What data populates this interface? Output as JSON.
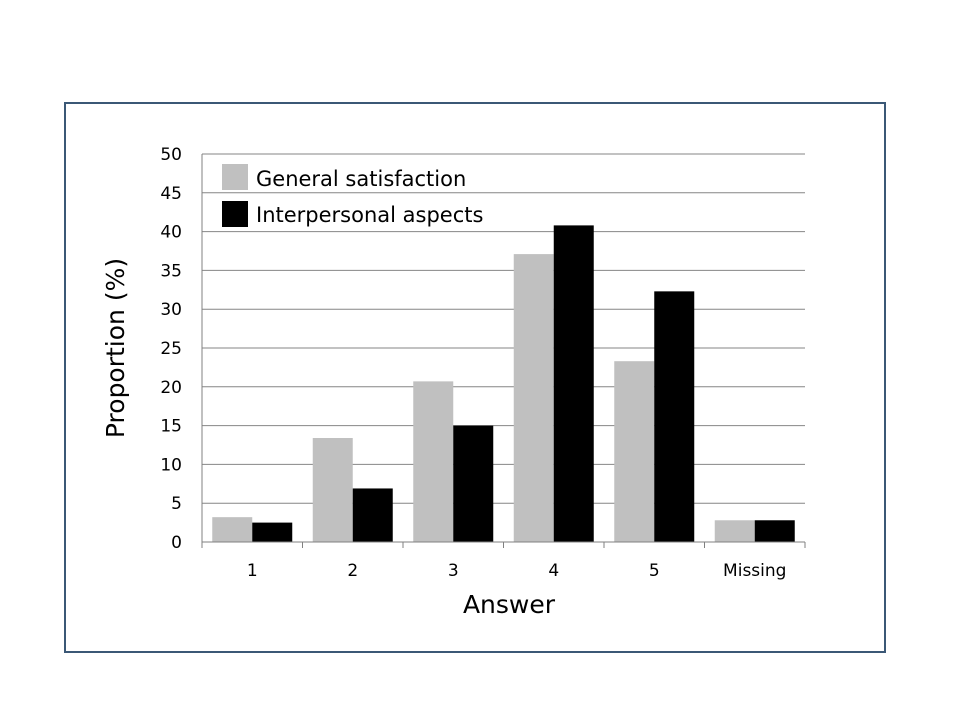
{
  "chart_data": {
    "type": "bar",
    "categories": [
      "1",
      "2",
      "3",
      "4",
      "5",
      "Missing"
    ],
    "series": [
      {
        "name": "General satisfaction",
        "color": "#c0c0c0",
        "values": [
          3.2,
          13.4,
          20.7,
          37.1,
          23.3,
          2.8
        ]
      },
      {
        "name": "Interpersonal aspects",
        "color": "#000000",
        "values": [
          2.5,
          6.9,
          15.0,
          40.8,
          32.3,
          2.8
        ]
      }
    ],
    "xlabel": "Answer",
    "ylabel": "Proportion (%)",
    "ylim": [
      0,
      50
    ],
    "yticks": [
      "0",
      "5",
      "10",
      "15",
      "20",
      "25",
      "30",
      "35",
      "40",
      "45",
      "50"
    ],
    "grid": true,
    "legend_position": "top-left"
  }
}
